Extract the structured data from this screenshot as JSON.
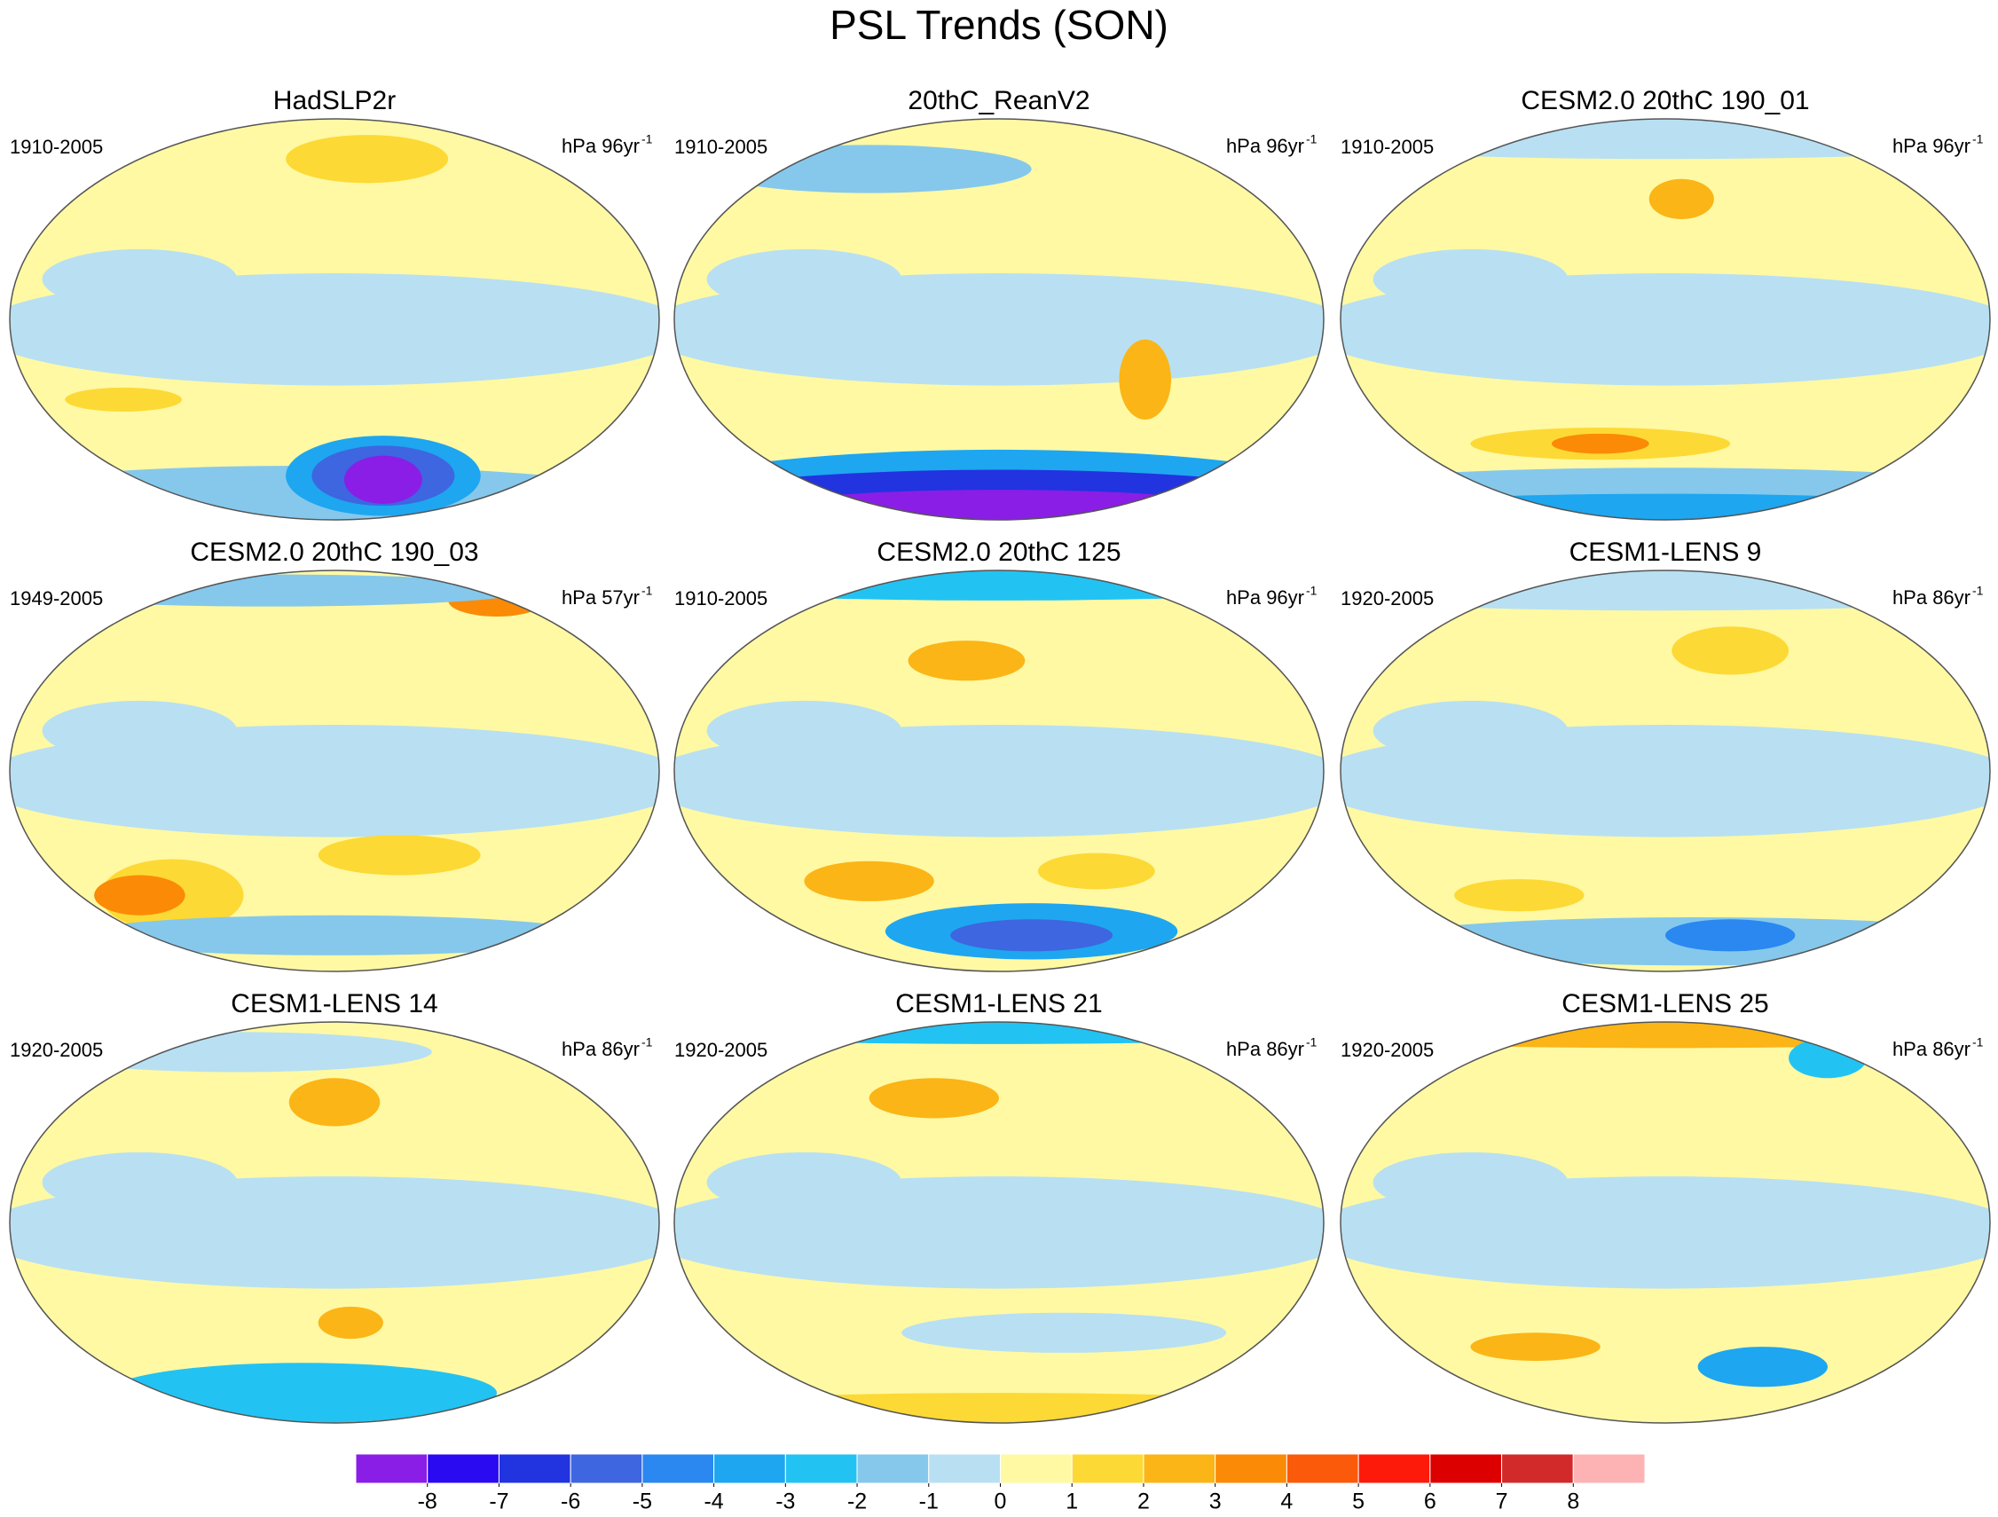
{
  "chart_data": {
    "type": "map-grid",
    "title": "PSL Trends (SON)",
    "panels": [
      {
        "title": "HadSLP2r",
        "period": "1910-2005",
        "units": "hPa 96yr",
        "units_exponent": "-1"
      },
      {
        "title": "20thC_ReanV2",
        "period": "1910-2005",
        "units": "hPa 96yr",
        "units_exponent": "-1"
      },
      {
        "title": "CESM2.0 20thC 190_01",
        "period": "1910-2005",
        "units": "hPa 96yr",
        "units_exponent": "-1"
      },
      {
        "title": "CESM2.0 20thC 190_03",
        "period": "1949-2005",
        "units": "hPa 57yr",
        "units_exponent": "-1"
      },
      {
        "title": "CESM2.0 20thC 125",
        "period": "1910-2005",
        "units": "hPa 96yr",
        "units_exponent": "-1"
      },
      {
        "title": "CESM1-LENS 9",
        "period": "1920-2005",
        "units": "hPa 86yr",
        "units_exponent": "-1"
      },
      {
        "title": "CESM1-LENS 14",
        "period": "1920-2005",
        "units": "hPa 86yr",
        "units_exponent": "-1"
      },
      {
        "title": "CESM1-LENS 21",
        "period": "1920-2005",
        "units": "hPa 86yr",
        "units_exponent": "-1"
      },
      {
        "title": "CESM1-LENS 25",
        "period": "1920-2005",
        "units": "hPa 86yr",
        "units_exponent": "-1"
      }
    ],
    "colorbar": {
      "ticks": [
        -8,
        -7,
        -6,
        -5,
        -4,
        -3,
        -2,
        -1,
        0,
        1,
        2,
        3,
        4,
        5,
        6,
        7,
        8
      ],
      "colors": [
        "#8a1ee6",
        "#2a0af0",
        "#2233e0",
        "#3d66e0",
        "#2a88f0",
        "#1ea6f0",
        "#22c3f2",
        "#85c8ec",
        "#b8e0f2",
        "#fff9a4",
        "#fdd935",
        "#fbb516",
        "#fb8a06",
        "#fb5a0a",
        "#fd1a0a",
        "#dd0000",
        "#d22a2a",
        "#fdb3b3"
      ]
    }
  }
}
